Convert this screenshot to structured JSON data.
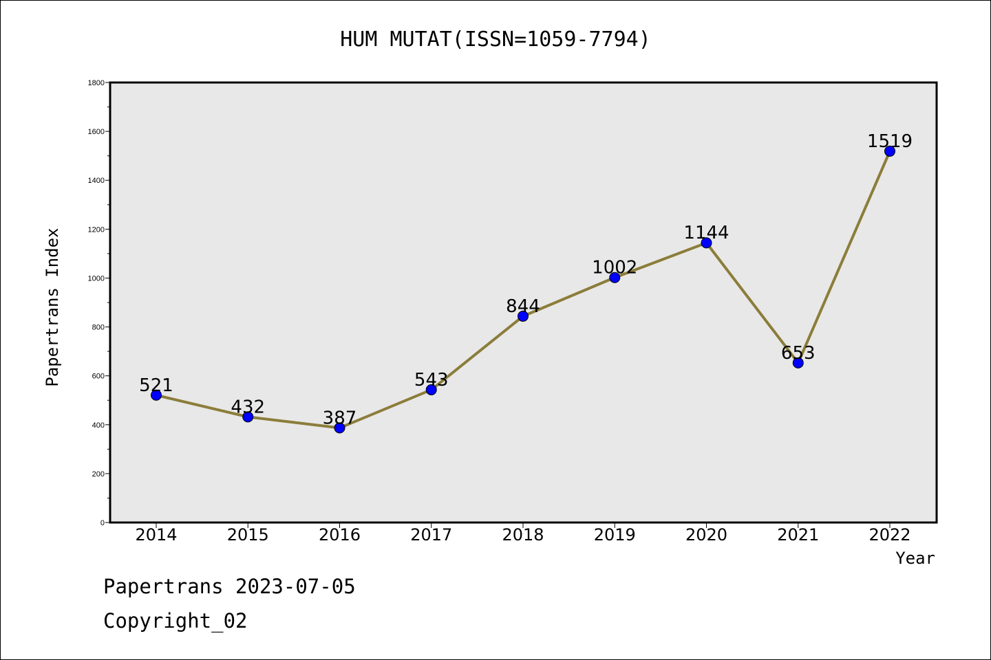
{
  "footer": {
    "line1": "Papertrans 2023-07-05",
    "line2": "Copyright_02"
  },
  "colors": {
    "plot_background": "#e8e8e8",
    "line": "#8b7d3a",
    "marker": "#0000ff"
  },
  "chart_data": {
    "type": "line",
    "title": "HUM MUTAT(ISSN=1059-7794)",
    "xlabel": "Year",
    "ylabel": "Papertrans Index",
    "ylim": [
      0,
      1800
    ],
    "yticks": [
      0,
      200,
      400,
      600,
      800,
      1000,
      1200,
      1400,
      1600,
      1800
    ],
    "categories": [
      "2014",
      "2015",
      "2016",
      "2017",
      "2018",
      "2019",
      "2020",
      "2021",
      "2022"
    ],
    "series": [
      {
        "values": [
          521,
          432,
          387,
          543,
          844,
          1002,
          1144,
          653,
          1519
        ]
      }
    ],
    "data_labels": [
      "521",
      "432",
      "387",
      "543",
      "844",
      "1002",
      "1144",
      "653",
      "1519"
    ],
    "grid": false,
    "legend": "none"
  }
}
